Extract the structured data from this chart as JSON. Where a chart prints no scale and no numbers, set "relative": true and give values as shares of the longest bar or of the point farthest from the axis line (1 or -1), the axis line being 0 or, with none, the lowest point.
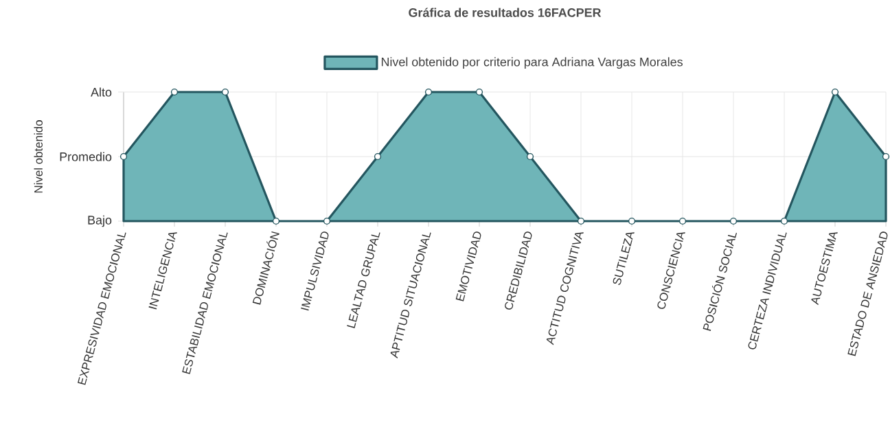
{
  "chart_data": {
    "type": "area",
    "title": "Gráfica de resultados 16FACPER",
    "ylabel": "Nivel obtenido",
    "categories": [
      "EXPRESIVIDAD EMOCIONAL",
      "INTELIGENCIA",
      "ESTABILIDAD EMOCIONAL",
      "DOMINACIÓN",
      "IMPULSIVIDAD",
      "LEALTAD GRUPAL",
      "APTITUD SITUACIONAL",
      "EMOTIVIDAD",
      "CREDIBILIDAD",
      "ACTITUD COGNITIVA",
      "SUTILEZA",
      "CONSCIENCIA",
      "POSICIÓN SOCIAL",
      "CERTEZA INDIVIDUAL",
      "AUTOESTIMA",
      "ESTADO DE ANSIEDAD"
    ],
    "series": [
      {
        "name": "Nivel obtenido por criterio para Adriana Vargas Morales",
        "color": "#6fb5b8",
        "values": [
          0.5,
          1,
          1,
          0,
          0,
          0.5,
          1,
          1,
          0.5,
          0,
          0,
          0,
          0,
          0,
          1,
          0.5
        ]
      }
    ],
    "relative": true,
    "ref_lines": [
      {
        "axis": "y",
        "value": 0,
        "label": "Bajo",
        "color": "#e6e6e6"
      },
      {
        "axis": "y",
        "value": 0.5,
        "label": "Promedio",
        "color": "#e6e6e6"
      },
      {
        "axis": "y",
        "value": 1,
        "label": "Alto",
        "color": "#e6e6e6"
      }
    ],
    "grid": "x",
    "legend": "top",
    "marker": "circle",
    "line_style": "solid"
  }
}
